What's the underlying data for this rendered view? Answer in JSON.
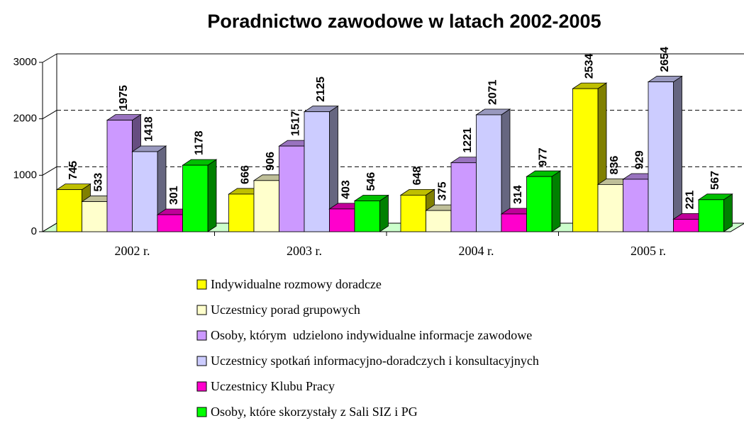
{
  "chart_data": {
    "type": "bar3d",
    "title": "Poradnictwo zawodowe w latach 2002-2005",
    "categories": [
      "2002 r.",
      "2003 r.",
      "2004 r.",
      "2005 r."
    ],
    "series": [
      {
        "name": "Indywidualne rozmowy doradcze",
        "color": "#ffff00",
        "values": [
          745,
          666,
          648,
          2534
        ]
      },
      {
        "name": "Uczestnicy porad grupowych",
        "color": "#ffffcc",
        "values": [
          533,
          906,
          375,
          836
        ]
      },
      {
        "name": "Osoby, którym  udzielono indywidualne informacje zawodowe",
        "color": "#cc99ff",
        "values": [
          1975,
          1517,
          1221,
          929
        ]
      },
      {
        "name": "Uczestnicy spotkań informacyjno-doradczych i konsultacyjnych",
        "color": "#ccccff",
        "values": [
          1418,
          2125,
          2071,
          2654
        ]
      },
      {
        "name": "Uczestnicy Klubu Pracy",
        "color": "#ff00cc",
        "values": [
          301,
          403,
          314,
          221
        ]
      },
      {
        "name": "Osoby, które skorzystały z Sali SIZ i PG",
        "color": "#00ff00",
        "values": [
          1178,
          546,
          977,
          567
        ]
      }
    ],
    "ylim": [
      0,
      3000
    ],
    "yticks": [
      0,
      1000,
      2000,
      3000
    ],
    "grid": true,
    "legend": "bottom"
  }
}
